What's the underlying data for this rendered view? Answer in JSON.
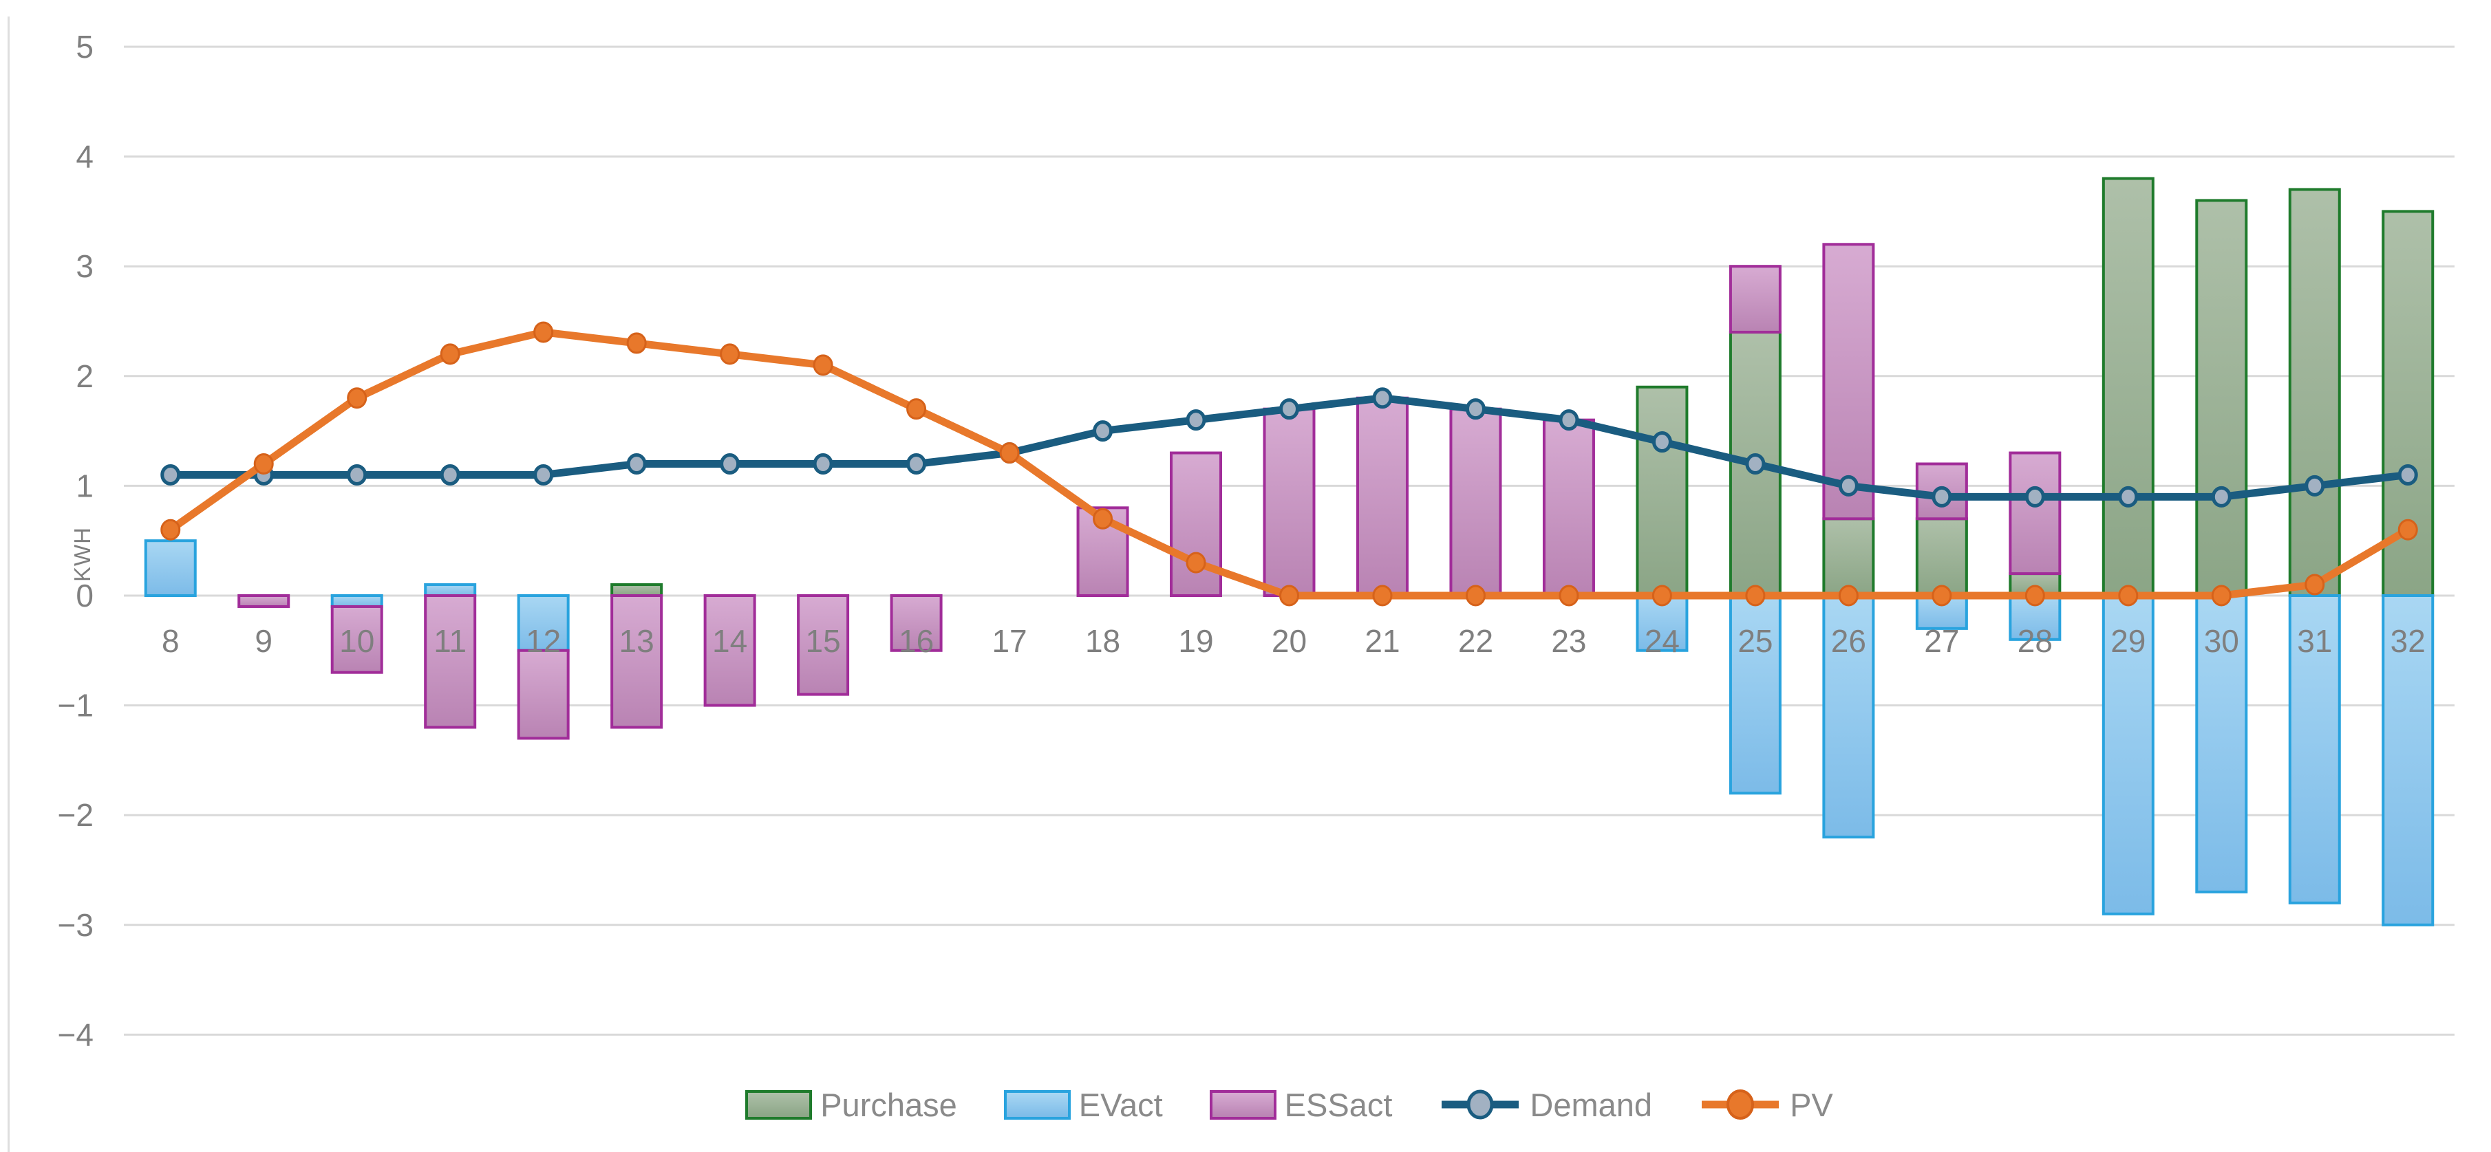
{
  "chart_data": {
    "type": "combo",
    "title": "",
    "xlabel": "",
    "ylabel": "KWH",
    "legend_position": "bottom",
    "grid": true,
    "grid_color": "#d9d9d9",
    "axis_text_color": "#7f7f7f",
    "legend_text_color": "#8a8a8a",
    "categories": [
      8,
      9,
      10,
      11,
      12,
      13,
      14,
      15,
      16,
      17,
      18,
      19,
      20,
      21,
      22,
      23,
      24,
      25,
      26,
      27,
      28,
      29,
      30,
      31,
      32
    ],
    "y_axis": {
      "min": -4,
      "max": 5,
      "step": 1,
      "ticks": [
        {
          "v": 5,
          "label": "5"
        },
        {
          "v": 4,
          "label": "4"
        },
        {
          "v": 3,
          "label": "3"
        },
        {
          "v": 2,
          "label": "2"
        },
        {
          "v": 1,
          "label": "1"
        },
        {
          "v": 0,
          "label": "0"
        },
        {
          "v": -1,
          "label": "−1"
        },
        {
          "v": -2,
          "label": "−2"
        },
        {
          "v": -3,
          "label": "−3"
        },
        {
          "v": -4,
          "label": "−4"
        }
      ]
    },
    "bar_series": [
      {
        "name": "Purchase",
        "stack": "stacked",
        "fill_top": "#aec0a9",
        "fill_bottom": "#8ba586",
        "stroke": "#1f7b2c",
        "values": [
          0,
          0,
          0,
          0,
          0,
          0.1,
          0,
          0,
          0,
          0,
          0,
          0,
          0,
          0,
          0,
          0,
          1.9,
          2.4,
          0.7,
          0.7,
          0.2,
          3.8,
          3.6,
          3.7,
          3.5
        ]
      },
      {
        "name": "EVact",
        "stack": "stacked",
        "fill_top": "#a9d7f3",
        "fill_bottom": "#7cbbe8",
        "stroke": "#29a3de",
        "values": [
          0.5,
          0,
          -0.1,
          0.1,
          -0.5,
          0,
          0,
          0,
          0,
          0,
          0,
          0,
          0,
          0,
          0,
          0,
          -0.5,
          -1.8,
          -2.2,
          -0.3,
          -0.4,
          -2.9,
          -2.7,
          -2.8,
          -3.0
        ]
      },
      {
        "name": "ESSact",
        "stack": "stacked",
        "fill_top": "#d7abd2",
        "fill_bottom": "#b983b3",
        "stroke": "#a12d99",
        "values": [
          0,
          -0.1,
          -0.6,
          -1.2,
          -0.8,
          -1.2,
          -1.0,
          -0.9,
          -0.5,
          0,
          0.8,
          1.3,
          1.7,
          1.8,
          1.7,
          1.6,
          0,
          0.6,
          2.5,
          0.5,
          1.1,
          0,
          0,
          0,
          0
        ]
      }
    ],
    "line_series": [
      {
        "name": "Demand",
        "color": "#1a5c80",
        "marker_fill": "#a2b1c2",
        "marker_stroke": "#1a5c80",
        "values": [
          1.1,
          1.1,
          1.1,
          1.1,
          1.1,
          1.2,
          1.2,
          1.2,
          1.2,
          1.3,
          1.5,
          1.6,
          1.7,
          1.8,
          1.7,
          1.6,
          1.4,
          1.2,
          1.0,
          0.9,
          0.9,
          0.9,
          0.9,
          1.0,
          1.1
        ]
      },
      {
        "name": "PV",
        "color": "#e8782b",
        "marker_fill": "#e8782b",
        "marker_stroke": "#d6621a",
        "values": [
          0.6,
          1.2,
          1.8,
          2.2,
          2.4,
          2.3,
          2.2,
          2.1,
          1.7,
          1.3,
          0.7,
          0.3,
          0,
          0,
          0,
          0,
          0,
          0,
          0,
          0,
          0,
          0,
          0,
          0.1,
          0.6
        ]
      }
    ]
  }
}
